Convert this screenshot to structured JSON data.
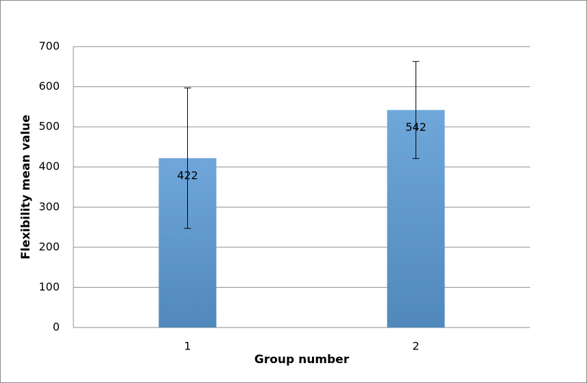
{
  "chart_data": {
    "type": "bar",
    "categories": [
      "1",
      "2"
    ],
    "values": [
      422,
      542
    ],
    "errors": [
      175,
      121
    ],
    "color": "#5b9bd5",
    "x_label": "Group number",
    "y_label": "Flexibility mean value",
    "ylim": [
      0,
      700
    ],
    "yticks": [
      0,
      100,
      200,
      300,
      400,
      500,
      600,
      700
    ],
    "grid": true
  }
}
